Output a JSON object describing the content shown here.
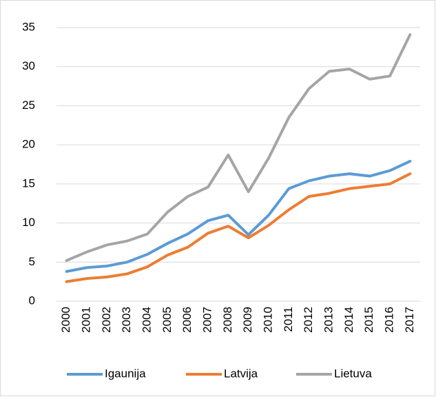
{
  "chart_data": {
    "type": "line",
    "categories": [
      "2000",
      "2001",
      "2002",
      "2003",
      "2004",
      "2005",
      "2006",
      "2007",
      "2008",
      "2009",
      "2010",
      "2011",
      "2012",
      "2013",
      "2014",
      "2015",
      "2016",
      "2017"
    ],
    "series": [
      {
        "name": "Igaunija",
        "color": "#5b9bd5",
        "values": [
          3.8,
          4.3,
          4.5,
          5.0,
          6.0,
          7.4,
          8.6,
          10.3,
          11.0,
          8.5,
          11.0,
          14.4,
          15.4,
          16.0,
          16.3,
          16.0,
          16.7,
          17.9
        ]
      },
      {
        "name": "Latvija",
        "color": "#ed7d31",
        "values": [
          2.5,
          2.9,
          3.1,
          3.5,
          4.4,
          5.9,
          6.9,
          8.7,
          9.6,
          8.1,
          9.7,
          11.7,
          13.4,
          13.8,
          14.4,
          14.7,
          15.0,
          16.3
        ]
      },
      {
        "name": "Lietuva",
        "color": "#a5a5a5",
        "values": [
          5.2,
          6.3,
          7.2,
          7.7,
          8.6,
          11.4,
          13.4,
          14.6,
          18.7,
          14.0,
          18.3,
          23.5,
          27.2,
          29.4,
          29.7,
          28.4,
          28.8,
          34.1
        ]
      }
    ],
    "ylim": [
      0,
      35
    ],
    "yticks": [
      0,
      5,
      10,
      15,
      20,
      25,
      30,
      35
    ],
    "grid": true,
    "legend": "bottom"
  }
}
